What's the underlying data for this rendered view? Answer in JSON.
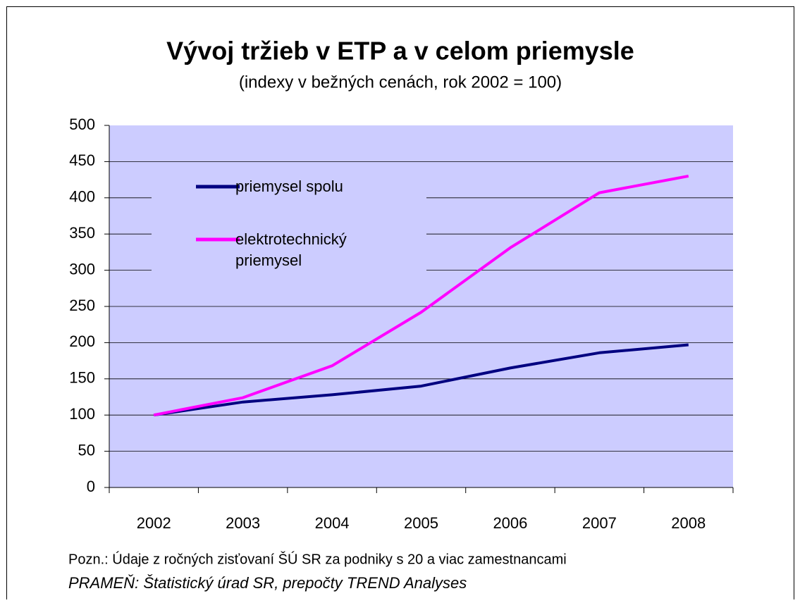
{
  "chart_data": {
    "type": "line",
    "title": "Vývoj tržieb v ETP a v celom priemysle",
    "subtitle": "(indexy v bežných cenách, rok 2002 = 100)",
    "categories": [
      "2002",
      "2003",
      "2004",
      "2005",
      "2006",
      "2007",
      "2008"
    ],
    "series": [
      {
        "name": "priemysel spolu",
        "color": "#000080",
        "values": [
          100,
          118,
          128,
          140,
          165,
          186,
          197
        ]
      },
      {
        "name": "elektrotechnický priemysel",
        "color": "#ff00ff",
        "values": [
          100,
          124,
          168,
          242,
          331,
          407,
          430
        ]
      }
    ],
    "ylim": [
      0,
      500
    ],
    "yticks": [
      0,
      50,
      100,
      150,
      200,
      250,
      300,
      350,
      400,
      450,
      500
    ],
    "grid": true,
    "legend": "upper left",
    "note": "Pozn.: Údaje z ročných zisťovaní ŠÚ SR za podniky s 20 a viac zamestnancami",
    "source": "PRAMEŇ: Štatistický úrad SR, prepočty TREND Analyses"
  }
}
